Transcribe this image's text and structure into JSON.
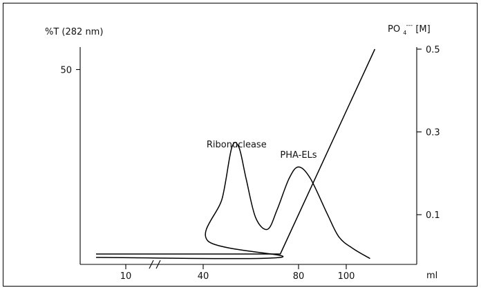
{
  "chart_data": {
    "type": "line",
    "title": "",
    "xlabel": "ml",
    "ylabel_left": "%T (282 nm)",
    "ylabel_right_base": "PO",
    "ylabel_right_sub": "4",
    "ylabel_right_sup": "---",
    "ylabel_right_unit": "[M]",
    "x_ticks": [
      {
        "label": "10",
        "value": 10
      },
      {
        "label": "40",
        "value": 40
      },
      {
        "label": "80",
        "value": 80
      },
      {
        "label": "100",
        "value": 100
      }
    ],
    "x_axis_break": true,
    "left_ticks": [
      {
        "label": "50",
        "value": 50
      }
    ],
    "right_ticks": [
      {
        "label": "0.5",
        "value": 0.5
      },
      {
        "label": "0.3",
        "value": 0.3
      },
      {
        "label": "0.1",
        "value": 0.1
      }
    ],
    "right_ylim": [
      0,
      0.5
    ],
    "series": [
      {
        "name": "",
        "axis": "left",
        "points": [
          [
            5,
            1.8
          ],
          [
            36,
            1.8
          ],
          [
            42,
            6
          ],
          [
            48,
            17
          ],
          [
            52,
            30
          ],
          [
            55,
            30
          ],
          [
            58,
            22
          ],
          [
            62,
            12
          ],
          [
            67,
            9
          ],
          [
            71,
            14
          ],
          [
            76,
            22
          ],
          [
            80,
            25
          ],
          [
            85,
            22
          ],
          [
            92,
            13
          ],
          [
            97,
            7
          ],
          [
            103,
            4
          ],
          [
            110,
            1.5
          ]
        ]
      },
      {
        "name": "",
        "axis": "right",
        "points": [
          [
            5,
            0.005
          ],
          [
            36,
            0.005
          ],
          [
            112,
            0.5
          ]
        ]
      }
    ],
    "annotations": [
      {
        "text": "Ribonuclease",
        "x": 54
      },
      {
        "text": "PHA-ELs",
        "x": 80
      }
    ]
  }
}
